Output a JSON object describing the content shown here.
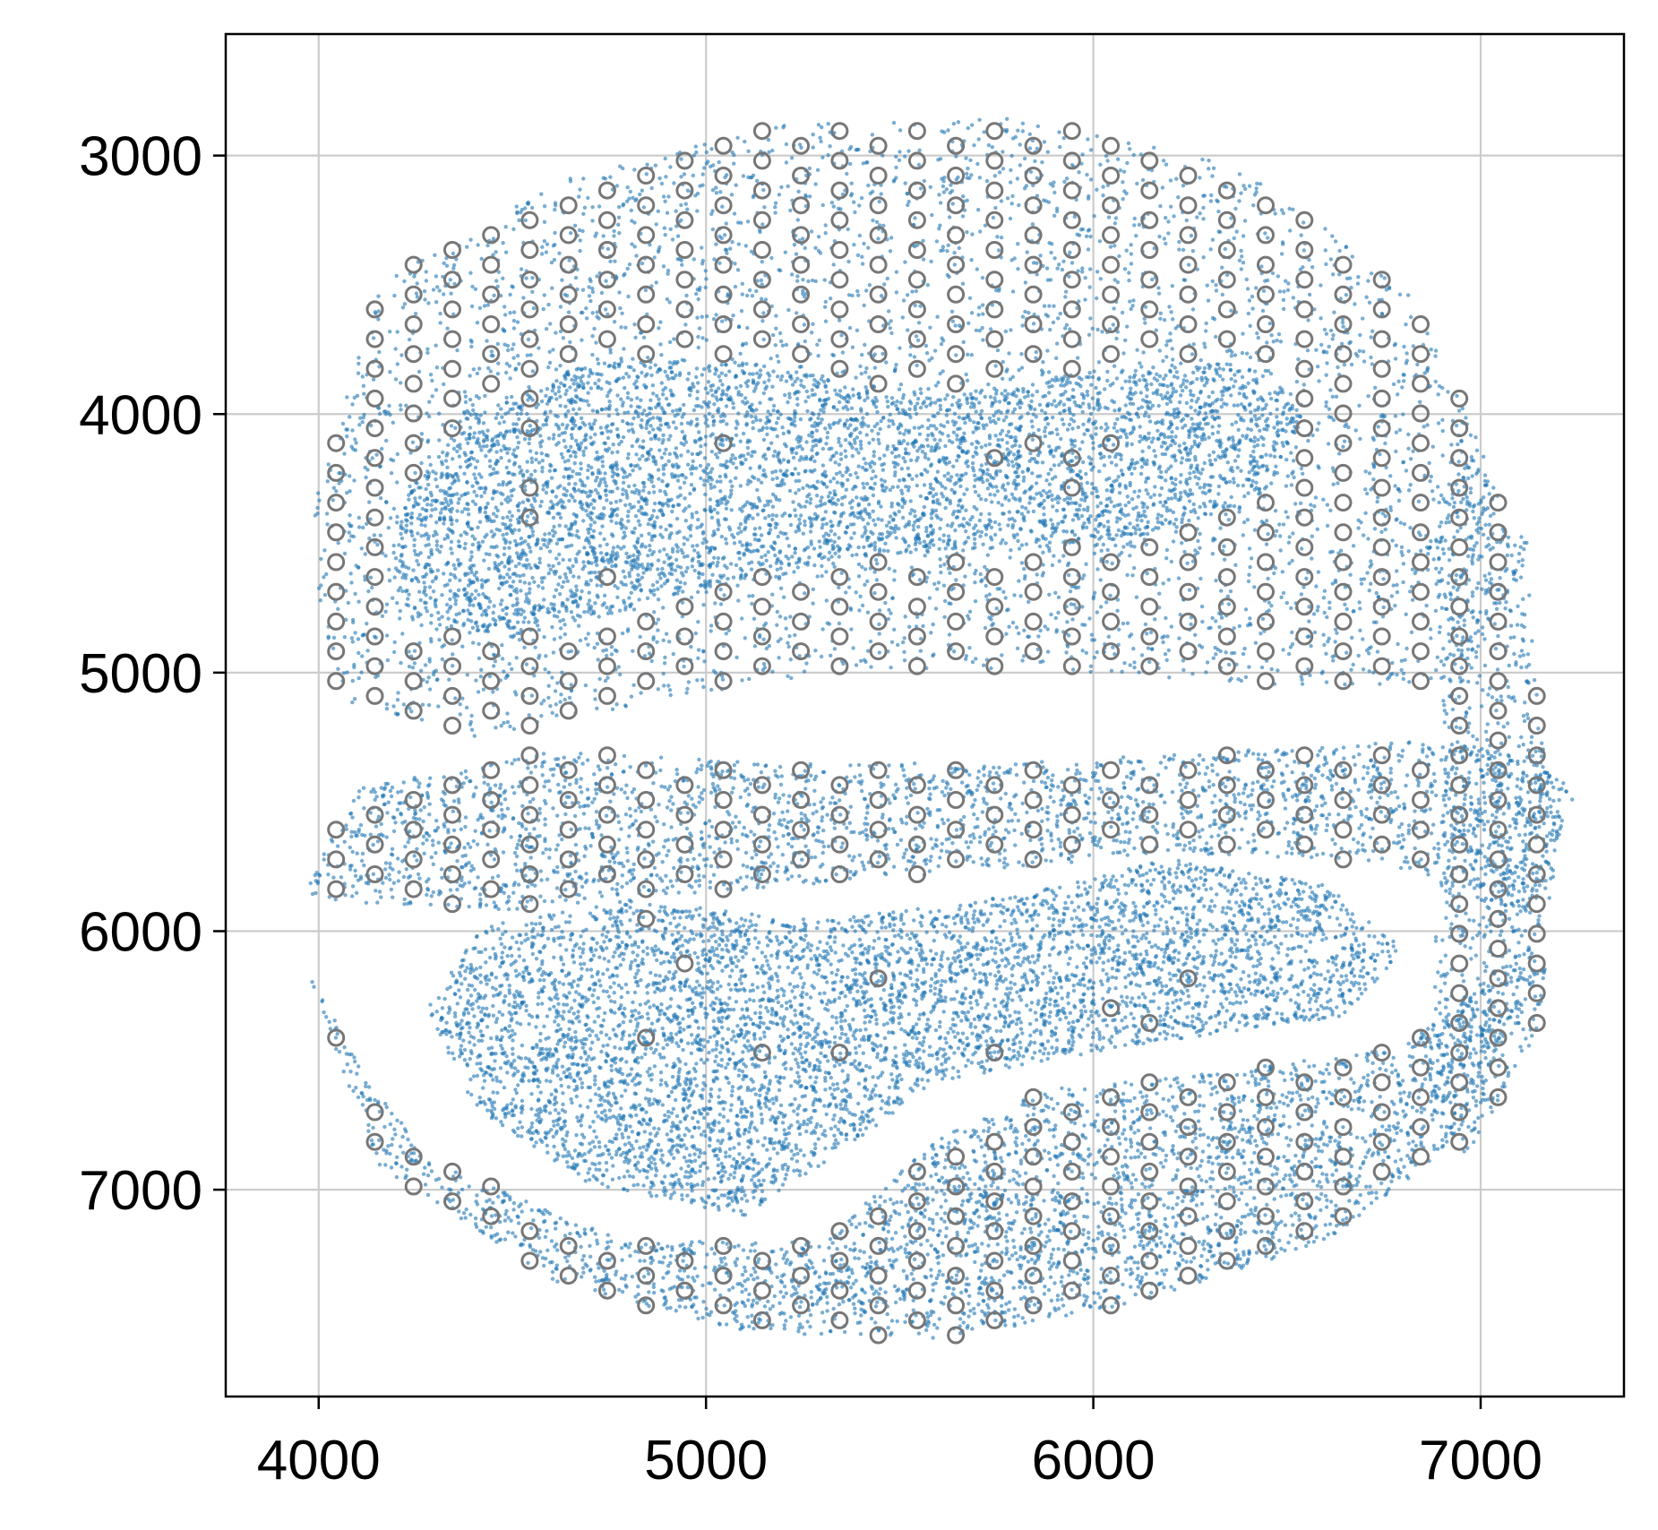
{
  "chart_data": {
    "type": "scatter",
    "title": "",
    "xlabel": "",
    "ylabel": "",
    "xlim": [
      3760,
      7370
    ],
    "ylim": [
      7800,
      2530
    ],
    "y_inverted": true,
    "grid": true,
    "xticks": [
      4000,
      5000,
      6000,
      7000
    ],
    "yticks": [
      3000,
      4000,
      5000,
      6000,
      7000
    ],
    "xtick_labels": [
      "4000",
      "5000",
      "6000",
      "7000"
    ],
    "ytick_labels": [
      "3000",
      "4000",
      "5000",
      "6000",
      "7000"
    ],
    "colors": {
      "cells": "#1f77b4",
      "spots": "#777777",
      "grid": "#cccccc",
      "axes": "#000000"
    },
    "series": [
      {
        "kind": "cells",
        "marker": "filled-dot",
        "regions": [
          {
            "part": "upper-inner-lobe",
            "outline": [
              [
                4180,
                4600
              ],
              [
                4230,
                4300
              ],
              [
                4400,
                3980
              ],
              [
                4700,
                3790
              ],
              [
                5100,
                3800
              ],
              [
                5600,
                3930
              ],
              [
                6000,
                3830
              ],
              [
                6400,
                3800
              ],
              [
                6550,
                4000
              ],
              [
                6450,
                4300
              ],
              [
                6100,
                4510
              ],
              [
                5700,
                4520
              ],
              [
                5300,
                4560
              ],
              [
                4900,
                4720
              ],
              [
                4500,
                4870
              ],
              [
                4250,
                4820
              ]
            ]
          },
          {
            "part": "lower-inner-lobe",
            "outline": [
              [
                4280,
                6300
              ],
              [
                4420,
                5980
              ],
              [
                4800,
                5880
              ],
              [
                5300,
                5960
              ],
              [
                5800,
                5860
              ],
              [
                6200,
                5720
              ],
              [
                6600,
                5820
              ],
              [
                6800,
                6070
              ],
              [
                6650,
                6330
              ],
              [
                6300,
                6400
              ],
              [
                6000,
                6470
              ],
              [
                5600,
                6580
              ],
              [
                5350,
                6850
              ],
              [
                5100,
                7100
              ],
              [
                4700,
                6980
              ],
              [
                4400,
                6680
              ]
            ]
          },
          {
            "part": "upper-ring",
            "outline": [
              [
                3970,
                4450
              ],
              [
                4150,
                3500
              ],
              [
                4600,
                3100
              ],
              [
                5200,
                2880
              ],
              [
                5800,
                2850
              ],
              [
                6400,
                3050
              ],
              [
                6800,
                3500
              ],
              [
                7000,
                4100
              ],
              [
                7080,
                4700
              ],
              [
                6900,
                5050
              ],
              [
                6500,
                5050
              ],
              [
                6000,
                5000
              ],
              [
                5400,
                4980
              ],
              [
                4900,
                5100
              ],
              [
                4400,
                5250
              ],
              [
                4050,
                5100
              ]
            ]
          },
          {
            "part": "middle-band",
            "outline": [
              [
                3940,
                5880
              ],
              [
                4100,
                5450
              ],
              [
                4600,
                5300
              ],
              [
                5200,
                5350
              ],
              [
                5800,
                5350
              ],
              [
                6400,
                5300
              ],
              [
                7000,
                5250
              ],
              [
                7250,
                5450
              ],
              [
                7120,
                5950
              ],
              [
                6750,
                5730
              ],
              [
                6200,
                5700
              ],
              [
                5600,
                5780
              ],
              [
                5000,
                5850
              ],
              [
                4500,
                5920
              ]
            ]
          },
          {
            "part": "lower-ring",
            "outline": [
              [
                3970,
                6150
              ],
              [
                4150,
                6900
              ],
              [
                4600,
                7350
              ],
              [
                5100,
                7550
              ],
              [
                5600,
                7580
              ],
              [
                6100,
                7450
              ],
              [
                6600,
                7200
              ],
              [
                6950,
                6800
              ],
              [
                7100,
                6300
              ],
              [
                7120,
                6050
              ],
              [
                6800,
                6450
              ],
              [
                6300,
                6550
              ],
              [
                5900,
                6600
              ],
              [
                5600,
                6800
              ],
              [
                5300,
                7200
              ],
              [
                4800,
                7200
              ],
              [
                4300,
                6900
              ],
              [
                4100,
                6500
              ]
            ]
          },
          {
            "part": "right-column",
            "outline": [
              [
                6950,
                4050
              ],
              [
                7120,
                4500
              ],
              [
                7150,
                5200
              ],
              [
                7200,
                5600
              ],
              [
                7150,
                6400
              ],
              [
                6950,
                6900
              ],
              [
                6850,
                6500
              ],
              [
                6900,
                5800
              ],
              [
                6900,
                5000
              ],
              [
                6880,
                4400
              ]
            ]
          }
        ]
      },
      {
        "kind": "spots",
        "marker": "hollow-circle",
        "grid_pitch_x": 100,
        "grid_pitch_y": 115,
        "extent": [
          [
            3945,
            2790
          ],
          [
            7230,
            7640
          ]
        ]
      }
    ]
  }
}
